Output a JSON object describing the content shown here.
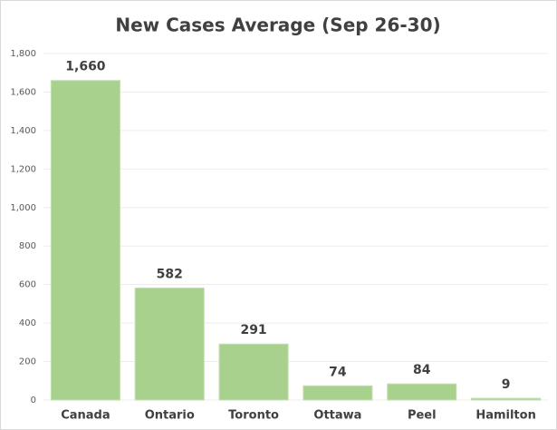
{
  "chart_data": {
    "type": "bar",
    "title": "New Cases Average (Sep 26-30)",
    "categories": [
      "Canada",
      "Ontario",
      "Toronto",
      "Ottawa",
      "Peel",
      "Hamilton"
    ],
    "values": [
      1660,
      582,
      291,
      74,
      84,
      9
    ],
    "value_labels": [
      "1,660",
      "582",
      "291",
      "74",
      "84",
      "9"
    ],
    "color": "#a9d18e",
    "ylim": [
      0,
      1800
    ],
    "yticks": [
      0,
      200,
      400,
      600,
      800,
      {
        "value": 1000,
        "label": "1,000"
      },
      {
        "value": 1200,
        "label": "1,200"
      },
      {
        "value": 1400,
        "label": "1,400"
      },
      {
        "value": 1600,
        "label": "1,600"
      },
      {
        "value": 1800,
        "label": "1,800"
      }
    ],
    "grid": true
  }
}
